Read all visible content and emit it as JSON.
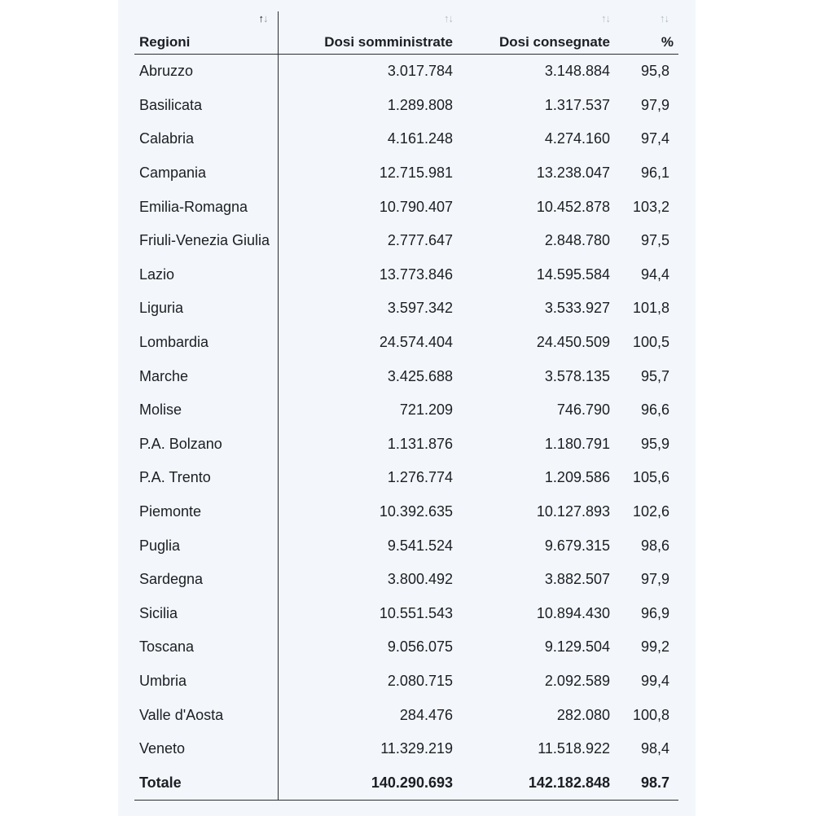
{
  "columns": {
    "region": "Regioni",
    "administered": "Dosi somministrate",
    "delivered": "Dosi consegnate",
    "percent": "%"
  },
  "sort_icon": {
    "up": "↑",
    "down": "↓",
    "name": "sort-arrows-icon"
  },
  "rows": [
    {
      "region": "Abruzzo",
      "administered": "3.017.784",
      "delivered": "3.148.884",
      "percent": "95,8"
    },
    {
      "region": "Basilicata",
      "administered": "1.289.808",
      "delivered": "1.317.537",
      "percent": "97,9"
    },
    {
      "region": "Calabria",
      "administered": "4.161.248",
      "delivered": "4.274.160",
      "percent": "97,4"
    },
    {
      "region": "Campania",
      "administered": "12.715.981",
      "delivered": "13.238.047",
      "percent": "96,1"
    },
    {
      "region": "Emilia-Romagna",
      "administered": "10.790.407",
      "delivered": "10.452.878",
      "percent": "103,2"
    },
    {
      "region": "Friuli-Venezia Giulia",
      "administered": "2.777.647",
      "delivered": "2.848.780",
      "percent": "97,5"
    },
    {
      "region": "Lazio",
      "administered": "13.773.846",
      "delivered": "14.595.584",
      "percent": "94,4"
    },
    {
      "region": "Liguria",
      "administered": "3.597.342",
      "delivered": "3.533.927",
      "percent": "101,8"
    },
    {
      "region": "Lombardia",
      "administered": "24.574.404",
      "delivered": "24.450.509",
      "percent": "100,5"
    },
    {
      "region": "Marche",
      "administered": "3.425.688",
      "delivered": "3.578.135",
      "percent": "95,7"
    },
    {
      "region": "Molise",
      "administered": "721.209",
      "delivered": "746.790",
      "percent": "96,6"
    },
    {
      "region": "P.A. Bolzano",
      "administered": "1.131.876",
      "delivered": "1.180.791",
      "percent": "95,9"
    },
    {
      "region": "P.A. Trento",
      "administered": "1.276.774",
      "delivered": "1.209.586",
      "percent": "105,6"
    },
    {
      "region": "Piemonte",
      "administered": "10.392.635",
      "delivered": "10.127.893",
      "percent": "102,6"
    },
    {
      "region": "Puglia",
      "administered": "9.541.524",
      "delivered": "9.679.315",
      "percent": "98,6"
    },
    {
      "region": "Sardegna",
      "administered": "3.800.492",
      "delivered": "3.882.507",
      "percent": "97,9"
    },
    {
      "region": "Sicilia",
      "administered": "10.551.543",
      "delivered": "10.894.430",
      "percent": "96,9"
    },
    {
      "region": "Toscana",
      "administered": "9.056.075",
      "delivered": "9.129.504",
      "percent": "99,2"
    },
    {
      "region": "Umbria",
      "administered": "2.080.715",
      "delivered": "2.092.589",
      "percent": "99,4"
    },
    {
      "region": "Valle d'Aosta",
      "administered": "284.476",
      "delivered": "282.080",
      "percent": "100,8"
    },
    {
      "region": "Veneto",
      "administered": "11.329.219",
      "delivered": "11.518.922",
      "percent": "98,4"
    }
  ],
  "total": {
    "region": "Totale",
    "administered": "140.290.693",
    "delivered": "142.182.848",
    "percent": "98.7"
  }
}
